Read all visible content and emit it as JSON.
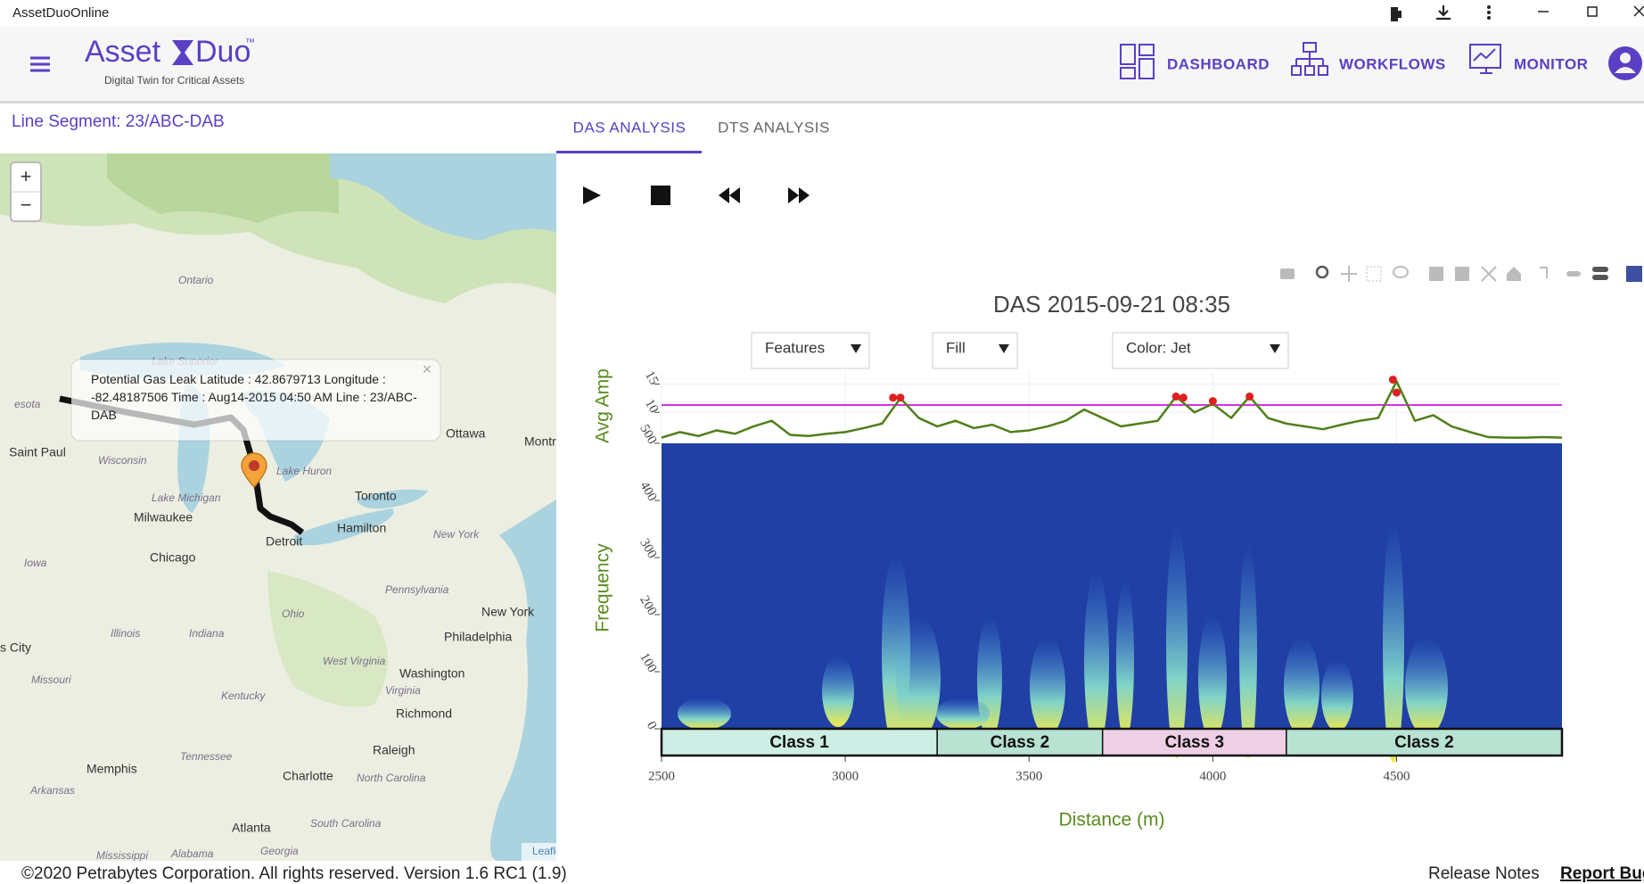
{
  "window": {
    "title": "AssetDuoOnline"
  },
  "header": {
    "brand_left": "Asset",
    "brand_right": "Duo",
    "trademark": "™",
    "tagline": "Digital Twin for Critical Assets",
    "nav": [
      "DASHBOARD",
      "WORKFLOWS",
      "MONITOR"
    ]
  },
  "segment": "Line Segment: 23/ABC-DAB",
  "map": {
    "zoom_in": "+",
    "zoom_out": "−",
    "popup": "Potential Gas Leak Latitude : 42.8679713 Longitude : -82.48187506 Time : Aug14-2015 04:50 AM Line : 23/ABC-DAB",
    "popup_close": "×",
    "places": [
      "Ontario",
      "Lake Superior",
      "esota",
      "Saint Paul",
      "Wisconsin",
      "Lake Michigan",
      "Milwaukee",
      "Chicago",
      "Iowa",
      "Lake Huron",
      "Toronto",
      "Ottawa",
      "Montr",
      "Hamilton",
      "Detroit",
      "New York",
      "Pennsylvania",
      "Ohio",
      "New York",
      "Philadelphia",
      "Illinois",
      "Indiana",
      "s City",
      "West Virginia",
      "Washington",
      "Virginia",
      "Missouri",
      "Kentucky",
      "Richmond",
      "Raleigh",
      "Tennessee",
      "Memphis",
      "Charlotte",
      "North Carolina",
      "Arkansas",
      "Atlanta",
      "South Carolina",
      "Mississippi",
      "Alabama",
      "Georgia"
    ],
    "attribution": "Leaflet"
  },
  "tabs": [
    "DAS ANALYSIS",
    "DTS ANALYSIS"
  ],
  "chart": {
    "type": "line",
    "title": "DAS 2015-09-21 08:35",
    "dropdowns": [
      "Features",
      "Fill",
      "Color: Jet"
    ],
    "amp_label": "Avg Amp",
    "freq_label": "Frequency",
    "xlabel": "Distance (m)",
    "xlim": [
      2500,
      4950
    ],
    "xticks": [
      2500,
      3000,
      3500,
      4000,
      4500
    ],
    "amp_ylim": [
      4.5,
      17
    ],
    "amp_yticks": [
      10,
      15
    ],
    "freq_ylim": [
      0,
      500
    ],
    "freq_yticks": [
      0,
      100,
      200,
      300,
      400,
      500
    ],
    "threshold": 11.3,
    "threshold_color": "#d633e0",
    "avg_amp": {
      "color": "#4f7f1a",
      "x": [
        2500,
        2550,
        2600,
        2650,
        2700,
        2750,
        2800,
        2850,
        2900,
        2950,
        3000,
        3050,
        3100,
        3150,
        3200,
        3250,
        3300,
        3350,
        3400,
        3450,
        3500,
        3550,
        3600,
        3650,
        3700,
        3750,
        3800,
        3850,
        3900,
        3950,
        4000,
        4050,
        4100,
        4150,
        4200,
        4250,
        4300,
        4350,
        4400,
        4450,
        4500,
        4550,
        4600,
        4650,
        4700,
        4750,
        4800,
        4850,
        4900,
        4950
      ],
      "values": [
        5.5,
        6.5,
        5.8,
        6.8,
        6.2,
        7.5,
        8.5,
        6,
        5.8,
        6.2,
        6.5,
        7.2,
        8,
        12.5,
        9,
        7.5,
        8.5,
        7.2,
        7.8,
        6.5,
        6.8,
        7.5,
        8.5,
        10.5,
        9,
        7.5,
        8,
        8.5,
        12.8,
        10,
        11.5,
        9,
        12.8,
        9,
        8,
        7.5,
        7,
        7.8,
        8.5,
        9,
        15.5,
        8.5,
        9.5,
        7.5,
        6.5,
        5.6,
        5.5,
        5.5,
        5.6,
        5.5
      ]
    },
    "peaks": {
      "color": "#e02020",
      "x": [
        3130,
        3150,
        3900,
        3920,
        4000,
        4100,
        4490,
        4500
      ],
      "values": [
        12.6,
        12.6,
        12.8,
        12.6,
        12,
        12.8,
        15.8,
        13.5
      ]
    },
    "classes": [
      {
        "label": "Class 1",
        "start": 2500,
        "end": 3250,
        "color": "#cdeee4"
      },
      {
        "label": "Class 2",
        "start": 3250,
        "end": 3700,
        "color": "#b8e2d1"
      },
      {
        "label": "Class 3",
        "start": 3700,
        "end": 4200,
        "color": "#efcfe6"
      },
      {
        "label": "Class 2",
        "start": 4200,
        "end": 4950,
        "color": "#b8e2d1"
      }
    ]
  },
  "footer": {
    "copyright": "©2020 Petrabytes Corporation. All rights reserved. Version 1.6 RC1 (1.9)",
    "release_notes": "Release Notes",
    "report_bug": "Report Bug"
  }
}
